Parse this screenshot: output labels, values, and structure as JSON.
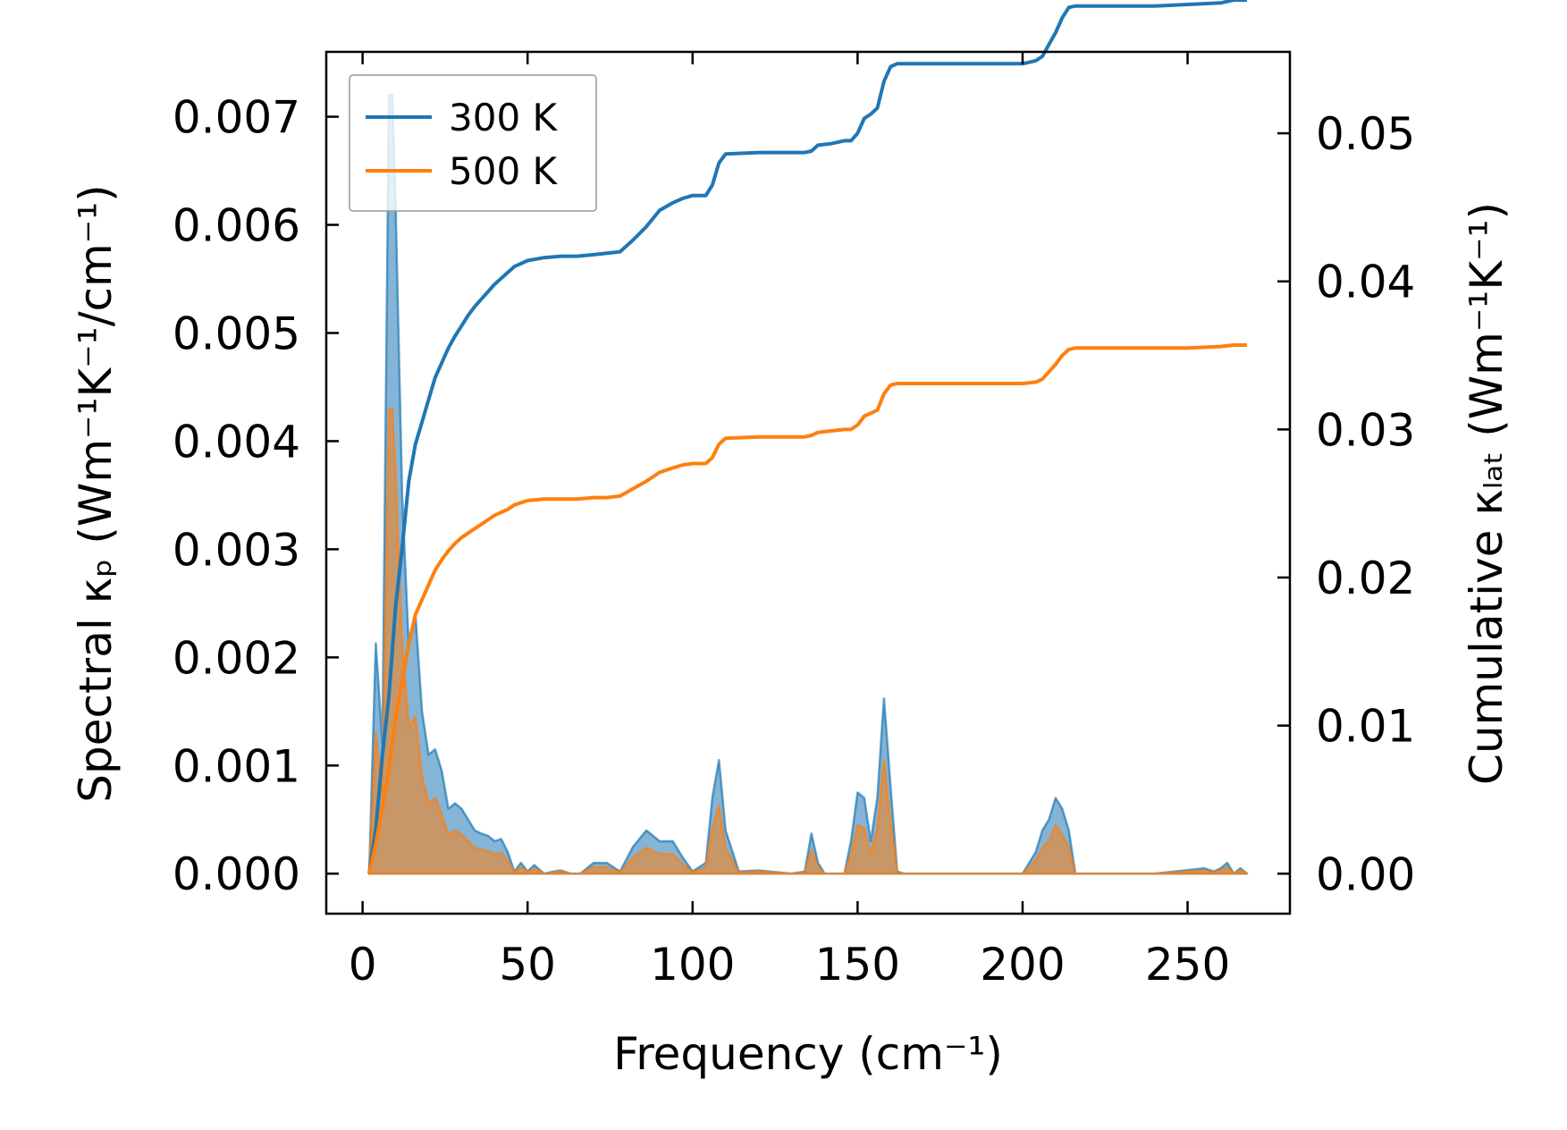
{
  "chart_data": {
    "type": "line",
    "xlabel": "Frequency (cm⁻¹)",
    "ylabel_left": "Spectral κₚ (Wm⁻¹K⁻¹/cm⁻¹)",
    "ylabel_right": "Cumulative κₗₐₜ (Wm⁻¹K⁻¹)",
    "xlim": [
      -11,
      281
    ],
    "ylim_left": [
      -0.00037,
      0.0076
    ],
    "ylim_right": [
      -0.0027,
      0.0555
    ],
    "x_ticks": [
      0,
      50,
      100,
      150,
      200,
      250
    ],
    "x_tick_labels": [
      "0",
      "50",
      "100",
      "150",
      "200",
      "250"
    ],
    "y_left_ticks": [
      0,
      0.001,
      0.002,
      0.003,
      0.004,
      0.005,
      0.006,
      0.007
    ],
    "y_left_tick_labels": [
      "0.000",
      "0.001",
      "0.002",
      "0.003",
      "0.004",
      "0.005",
      "0.006",
      "0.007"
    ],
    "y_right_ticks": [
      0,
      0.01,
      0.02,
      0.03,
      0.04,
      0.05
    ],
    "y_right_tick_labels": [
      "0.00",
      "0.01",
      "0.02",
      "0.03",
      "0.04",
      "0.05"
    ],
    "legend": {
      "placement": "top-left",
      "entries": [
        "300 K",
        "500 K"
      ]
    },
    "colors": {
      "300K": "#1f77b4",
      "500K": "#ff7f0e",
      "fill_300K": "#1f77b4",
      "fill_500K": "#ff7f0e"
    },
    "spectral": {
      "x": [
        2,
        4,
        6,
        8,
        9,
        10,
        12,
        14,
        16,
        18,
        20,
        22,
        24,
        26,
        28,
        30,
        32,
        34,
        36,
        38,
        40,
        42,
        44,
        46,
        48,
        50,
        52,
        55,
        58,
        60,
        63,
        66,
        70,
        74,
        78,
        82,
        86,
        90,
        94,
        97,
        100,
        104,
        106,
        108,
        110,
        114,
        120,
        130,
        134,
        136,
        138,
        140,
        146,
        148,
        150,
        152,
        154,
        156,
        158,
        160,
        162,
        164,
        170,
        180,
        190,
        200,
        204,
        206,
        208,
        210,
        212,
        214,
        216,
        220,
        240,
        255,
        258,
        260,
        262,
        264,
        266,
        268
      ],
      "s300K": [
        0,
        0.00213,
        0.0012,
        0.0072,
        0.0072,
        0.0062,
        0.0035,
        0.0021,
        0.0024,
        0.0015,
        0.0011,
        0.00115,
        0.00095,
        0.0006,
        0.00065,
        0.0006,
        0.0005,
        0.0004,
        0.00037,
        0.00035,
        0.0003,
        0.00032,
        0.0002,
        2e-05,
        0.0001,
        2e-05,
        8e-05,
        0,
        2e-05,
        3e-05,
        0,
        0,
        0.0001,
        0.0001,
        2e-05,
        0.00025,
        0.0004,
        0.0003,
        0.0003,
        0.00015,
        2e-05,
        0.0001,
        0.0007,
        0.00105,
        0.0004,
        2e-05,
        3e-05,
        0,
        2e-05,
        0.00037,
        0.0001,
        0,
        0,
        0.0003,
        0.00075,
        0.0007,
        0.0003,
        0.0007,
        0.00162,
        0.0008,
        2e-05,
        0,
        0,
        0,
        0,
        0,
        0.0002,
        0.0004,
        0.0005,
        0.0007,
        0.0006,
        0.0004,
        0,
        0,
        0,
        5e-05,
        2e-05,
        5e-05,
        0.0001,
        0,
        5e-05,
        0
      ],
      "s500K": [
        0,
        0.0013,
        0.00075,
        0.0043,
        0.0043,
        0.0037,
        0.0021,
        0.00135,
        0.00145,
        0.0009,
        0.00065,
        0.0007,
        0.00055,
        0.00036,
        0.0004,
        0.00036,
        0.0003,
        0.00024,
        0.00022,
        0.00021,
        0.00018,
        0.00019,
        0.00012,
        1e-05,
        6e-05,
        1e-05,
        5e-05,
        0,
        1e-05,
        2e-05,
        0,
        0,
        6e-05,
        6e-05,
        1e-05,
        0.00015,
        0.00024,
        0.00018,
        0.00018,
        9e-05,
        1e-05,
        6e-05,
        0.00042,
        0.00063,
        0.00024,
        1e-05,
        2e-05,
        0,
        1e-05,
        0.00022,
        6e-05,
        0,
        0,
        0.00018,
        0.00045,
        0.00042,
        0.00018,
        0.00042,
        0.00105,
        0.00048,
        1e-05,
        0,
        0,
        0,
        0,
        0,
        0.00012,
        0.00024,
        0.0003,
        0.00045,
        0.00036,
        0.00024,
        0,
        0,
        0,
        3e-05,
        1e-05,
        3e-05,
        6e-05,
        0,
        3e-05,
        0
      ]
    },
    "cumulative": {
      "x": [
        2,
        4,
        6,
        8,
        10,
        12,
        14,
        16,
        18,
        20,
        22,
        24,
        26,
        28,
        30,
        32,
        34,
        36,
        38,
        40,
        42,
        44,
        46,
        50,
        55,
        60,
        65,
        70,
        74,
        78,
        82,
        86,
        90,
        94,
        97,
        100,
        104,
        106,
        108,
        110,
        120,
        130,
        134,
        136,
        138,
        142,
        146,
        148,
        150,
        152,
        154,
        156,
        158,
        160,
        162,
        164,
        170,
        180,
        190,
        200,
        204,
        206,
        208,
        210,
        212,
        214,
        216,
        220,
        240,
        250,
        260,
        264,
        268
      ],
      "c300K": [
        0,
        0.003,
        0.008,
        0.012,
        0.018,
        0.022,
        0.0265,
        0.029,
        0.0305,
        0.032,
        0.0335,
        0.0345,
        0.0355,
        0.0363,
        0.037,
        0.0377,
        0.0383,
        0.0388,
        0.0393,
        0.0398,
        0.0402,
        0.0406,
        0.041,
        0.0414,
        0.0416,
        0.0417,
        0.0417,
        0.0418,
        0.0419,
        0.042,
        0.0428,
        0.0437,
        0.0448,
        0.0453,
        0.0456,
        0.0458,
        0.0458,
        0.0465,
        0.048,
        0.0486,
        0.0487,
        0.0487,
        0.0487,
        0.0488,
        0.0492,
        0.0493,
        0.0495,
        0.0495,
        0.05,
        0.051,
        0.0513,
        0.0517,
        0.0535,
        0.0545,
        0.0547,
        0.0547,
        0.0547,
        0.0547,
        0.0547,
        0.0547,
        0.0549,
        0.0552,
        0.056,
        0.0568,
        0.0578,
        0.0585,
        0.0586,
        0.0586,
        0.0586,
        0.0587,
        0.0588,
        0.059,
        0.059
      ],
      "c500K": [
        0,
        0.002,
        0.0045,
        0.007,
        0.0105,
        0.013,
        0.0155,
        0.0175,
        0.0185,
        0.0195,
        0.0205,
        0.0212,
        0.0218,
        0.0223,
        0.0227,
        0.023,
        0.0233,
        0.0236,
        0.0239,
        0.0242,
        0.0244,
        0.0246,
        0.0249,
        0.0252,
        0.0253,
        0.0253,
        0.0253,
        0.0254,
        0.0254,
        0.0255,
        0.026,
        0.0265,
        0.0271,
        0.0274,
        0.0276,
        0.0277,
        0.0277,
        0.0281,
        0.029,
        0.0294,
        0.0295,
        0.0295,
        0.0295,
        0.0296,
        0.0298,
        0.0299,
        0.03,
        0.03,
        0.0303,
        0.0309,
        0.0311,
        0.0313,
        0.0324,
        0.033,
        0.0331,
        0.0331,
        0.0331,
        0.0331,
        0.0331,
        0.0331,
        0.0332,
        0.0334,
        0.0339,
        0.0344,
        0.035,
        0.0354,
        0.0355,
        0.0355,
        0.0355,
        0.0355,
        0.0356,
        0.0357,
        0.0357
      ]
    }
  }
}
